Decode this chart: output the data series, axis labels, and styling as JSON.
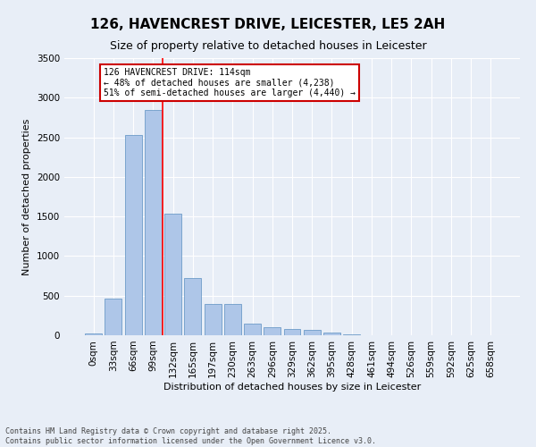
{
  "title": "126, HAVENCREST DRIVE, LEICESTER, LE5 2AH",
  "subtitle": "Size of property relative to detached houses in Leicester",
  "xlabel": "Distribution of detached houses by size in Leicester",
  "ylabel": "Number of detached properties",
  "bar_labels": [
    "0sqm",
    "33sqm",
    "66sqm",
    "99sqm",
    "132sqm",
    "165sqm",
    "197sqm",
    "230sqm",
    "263sqm",
    "296sqm",
    "329sqm",
    "362sqm",
    "395sqm",
    "428sqm",
    "461sqm",
    "494sqm",
    "526sqm",
    "559sqm",
    "592sqm",
    "625sqm",
    "658sqm"
  ],
  "bar_values": [
    20,
    460,
    2530,
    2840,
    1530,
    720,
    390,
    390,
    150,
    100,
    80,
    70,
    30,
    10,
    5,
    3,
    2,
    1,
    1,
    0,
    0
  ],
  "bar_color": "#aec6e8",
  "bar_edge_color": "#5a8fc0",
  "red_line_x": 3.5,
  "annotation_text": "126 HAVENCREST DRIVE: 114sqm\n← 48% of detached houses are smaller (4,238)\n51% of semi-detached houses are larger (4,440) →",
  "annotation_box_color": "#ffffff",
  "annotation_box_edge": "#cc0000",
  "ylim": [
    0,
    3500
  ],
  "yticks": [
    0,
    500,
    1000,
    1500,
    2000,
    2500,
    3000,
    3500
  ],
  "background_color": "#e8eef7",
  "footer_line1": "Contains HM Land Registry data © Crown copyright and database right 2025.",
  "footer_line2": "Contains public sector information licensed under the Open Government Licence v3.0.",
  "title_fontsize": 11,
  "subtitle_fontsize": 9,
  "axis_fontsize": 8,
  "tick_fontsize": 7.5,
  "annotation_fontsize": 7,
  "footer_fontsize": 6
}
